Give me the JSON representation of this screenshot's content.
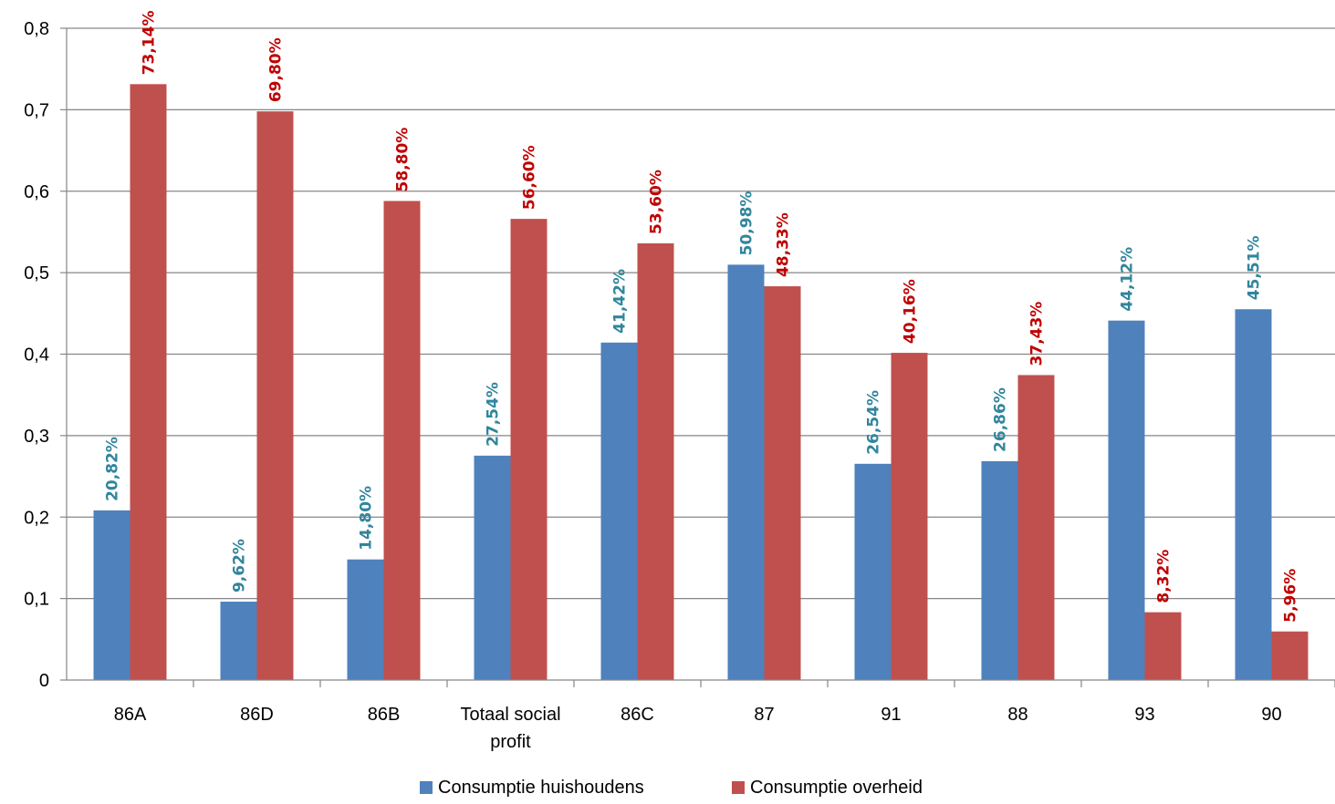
{
  "chart_data": {
    "type": "bar",
    "categories": [
      [
        "86A"
      ],
      [
        "86D"
      ],
      [
        "86B"
      ],
      [
        "Totaal social",
        "profit"
      ],
      [
        "86C"
      ],
      [
        "87"
      ],
      [
        "91"
      ],
      [
        "88"
      ],
      [
        "93"
      ],
      [
        "90"
      ]
    ],
    "series": [
      {
        "name": "Consumptie huishoudens",
        "color": "#4F81BD",
        "label_color": "#31859C",
        "values": [
          0.2082,
          0.0962,
          0.148,
          0.2754,
          0.4142,
          0.5098,
          0.2654,
          0.2686,
          0.4412,
          0.4551
        ],
        "labels": [
          "20,82%",
          "9,62%",
          "14,80%",
          "27,54%",
          "41,42%",
          "50,98%",
          "26,54%",
          "26,86%",
          "44,12%",
          "45,51%"
        ]
      },
      {
        "name": "Consumptie overheid",
        "color": "#C0504D",
        "label_color": "#C00000",
        "values": [
          0.7314,
          0.698,
          0.588,
          0.566,
          0.536,
          0.4833,
          0.4016,
          0.3743,
          0.0832,
          0.0596
        ],
        "labels": [
          "73,14%",
          "69,80%",
          "58,80%",
          "56,60%",
          "53,60%",
          "48,33%",
          "40,16%",
          "37,43%",
          "8,32%",
          "5,96%"
        ]
      }
    ],
    "y_ticks": [
      "0",
      "0,1",
      "0,2",
      "0,3",
      "0,4",
      "0,5",
      "0,6",
      "0,7",
      "0,8"
    ],
    "ylim": [
      0,
      0.8
    ],
    "grid": true,
    "legend_position": "bottom",
    "title": "",
    "xlabel": "",
    "ylabel": ""
  }
}
